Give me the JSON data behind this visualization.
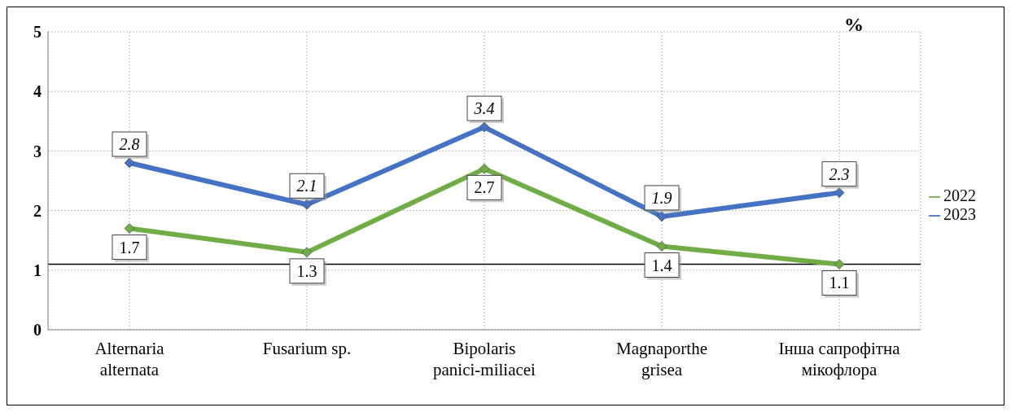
{
  "chart_data": {
    "type": "line",
    "ylabel": "%",
    "categories": [
      "Alternaria alternata",
      "Fusarium sp.",
      "Bipolaris panici-miliacei",
      "Magnaporthe grisea",
      "Інша сапрофітна мікофлора"
    ],
    "series": [
      {
        "name": "2022",
        "color": "#70ad47",
        "values": [
          1.7,
          1.3,
          2.7,
          1.4,
          1.1
        ]
      },
      {
        "name": "2023",
        "color": "#4472c4",
        "values": [
          2.8,
          2.1,
          3.4,
          1.9,
          2.3
        ]
      }
    ],
    "ylim": [
      0,
      5
    ],
    "yticks": [
      0,
      1,
      2,
      3,
      4,
      5
    ],
    "grid": true,
    "legend": "right",
    "marker": "diamond",
    "data_labels": true,
    "ref_lines": [
      {
        "axis": "y",
        "value": 1.1,
        "color": "#000000"
      }
    ]
  }
}
